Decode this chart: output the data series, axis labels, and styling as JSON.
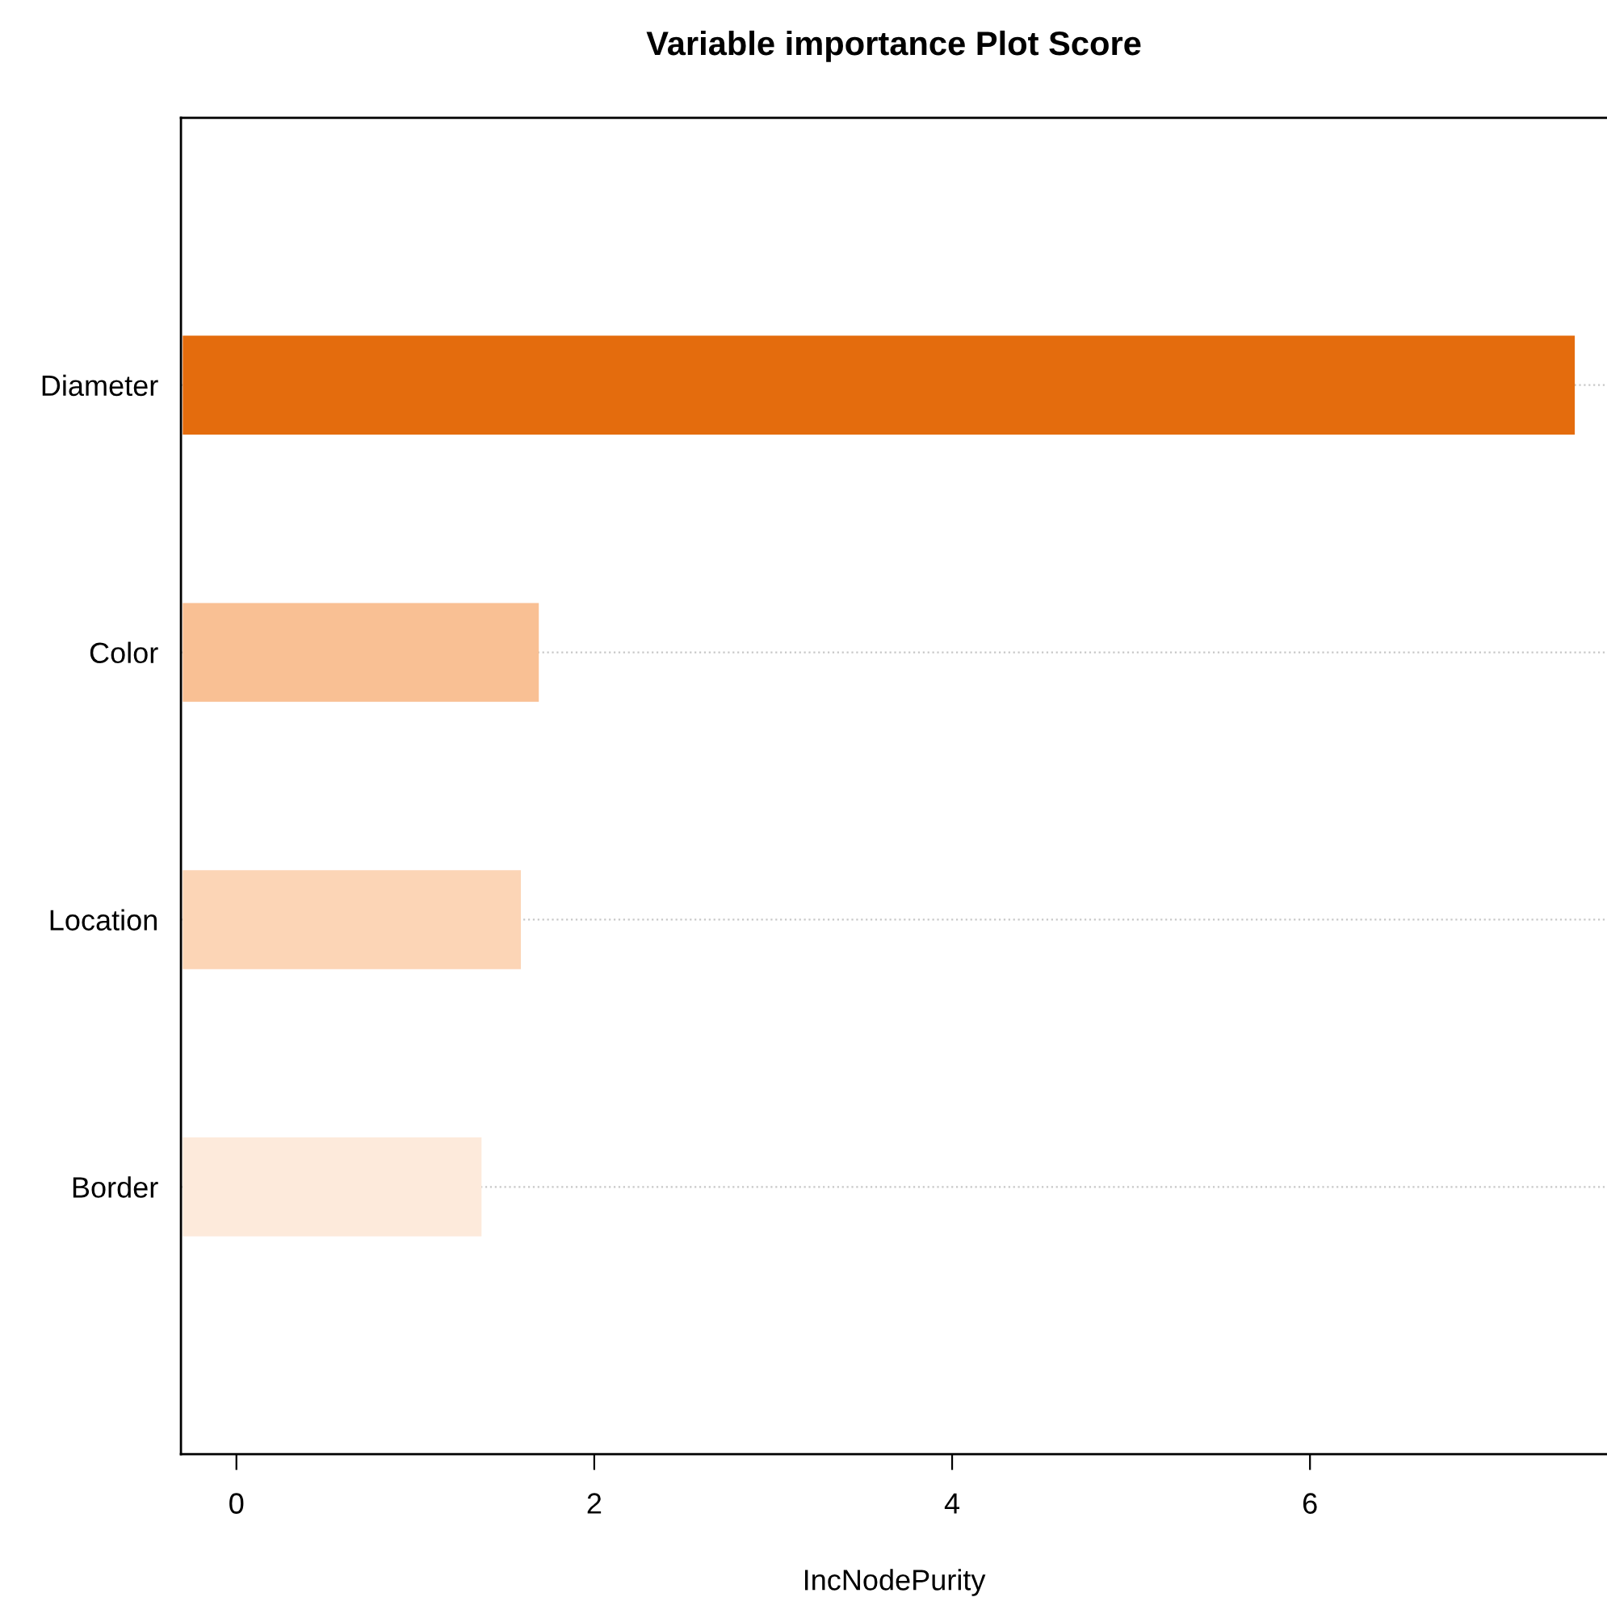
{
  "chart_data": {
    "type": "bar",
    "orientation": "horizontal",
    "title": "Variable importance Plot Score",
    "xlabel": "IncNodePurity",
    "categories": [
      "Diameter",
      "Color",
      "Location",
      "Border"
    ],
    "values": [
      7.78,
      1.99,
      1.89,
      1.67
    ],
    "base": [
      -0.3,
      -0.3,
      -0.3,
      -0.3
    ],
    "colors": [
      "#e46c0d",
      "#f9c094",
      "#fcd5b6",
      "#fdeadb"
    ],
    "xlim": [
      -0.31,
      7.66
    ],
    "xticks": [
      0,
      2,
      4,
      6
    ],
    "grid": "y",
    "line_style": "dotted"
  }
}
